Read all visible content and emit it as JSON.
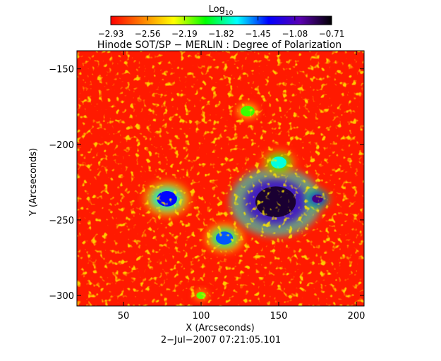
{
  "chart_data": {
    "type": "heatmap",
    "title": "Hinode SOT/SP − MERLIN : Degree of Polarization",
    "xlabel": "X (Arcseconds)",
    "ylabel": "Y (Arcseconds)",
    "timestamp": "2−Jul−2007 07:21:05.101",
    "xlim": [
      20,
      205
    ],
    "ylim": [
      -307,
      -138
    ],
    "x_ticks": [
      50,
      100,
      150,
      200
    ],
    "x_tick_labels": [
      "50",
      "100",
      "150",
      "200"
    ],
    "y_ticks": [
      -150,
      -200,
      -250,
      -300
    ],
    "y_tick_labels": [
      "−150",
      "−200",
      "−250",
      "−300"
    ],
    "colorbar": {
      "label": "Log",
      "label_subscript": "10",
      "range": [
        -2.93,
        -0.71
      ],
      "ticks": [
        -2.93,
        -2.56,
        -2.19,
        -1.82,
        -1.45,
        -1.08,
        -0.71
      ],
      "tick_labels": [
        "−2.93",
        "−2.56",
        "−2.19",
        "−1.82",
        "−1.45",
        "−1.08",
        "−0.71"
      ],
      "colormap": [
        "#ff0000",
        "#ff8000",
        "#ffff00",
        "#00ff00",
        "#00ffff",
        "#0000ff",
        "#5a00b0",
        "#000000"
      ]
    },
    "features": [
      {
        "x": 148,
        "y": -238,
        "level": -0.8
      },
      {
        "x": 175,
        "y": -236,
        "level": -0.95
      },
      {
        "x": 78,
        "y": -236,
        "level": -1.35
      },
      {
        "x": 115,
        "y": -262,
        "level": -1.45
      },
      {
        "x": 150,
        "y": -212,
        "level": -1.7
      },
      {
        "x": 130,
        "y": -178,
        "level": -2.05
      },
      {
        "x": 100,
        "y": -300,
        "level": -2.1
      }
    ]
  }
}
